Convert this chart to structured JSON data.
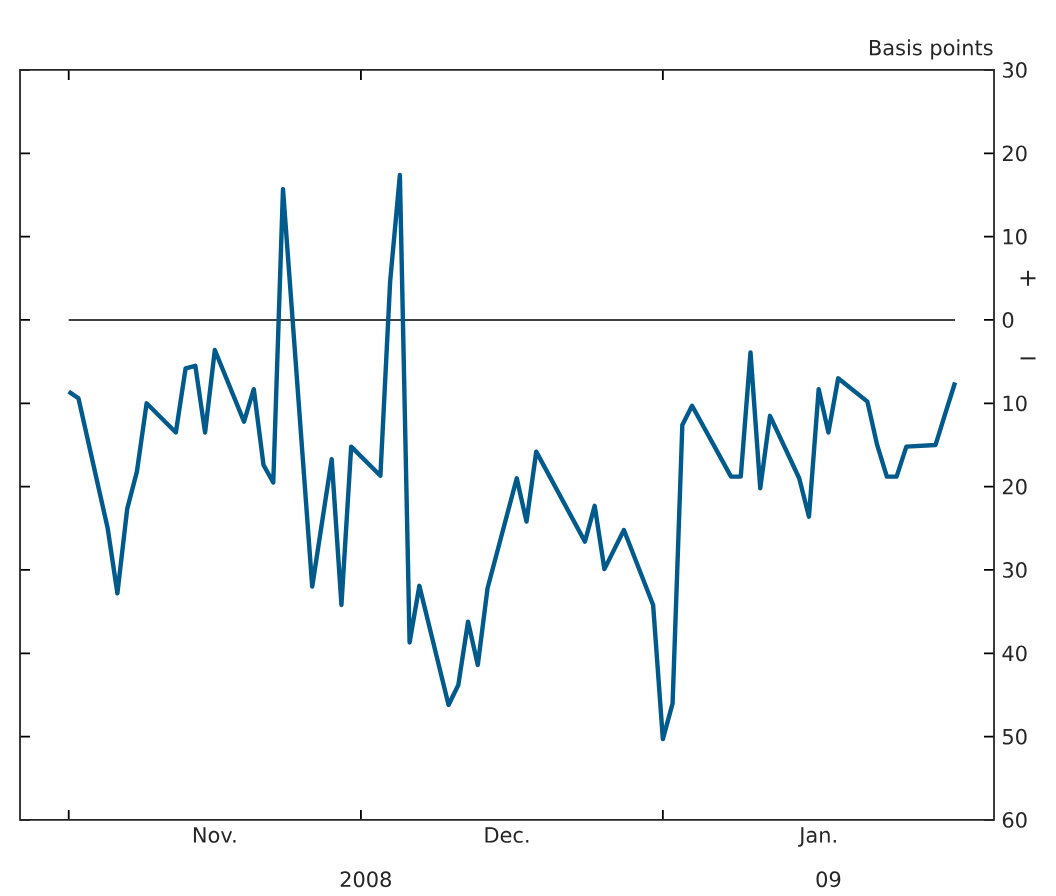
{
  "chart_data": {
    "type": "line",
    "ylabel": "Basis points",
    "x": [
      "2008-11-01",
      "2008-11-02",
      "2008-11-05",
      "2008-11-06",
      "2008-11-07",
      "2008-11-08",
      "2008-11-09",
      "2008-11-12",
      "2008-11-13",
      "2008-11-14",
      "2008-11-15",
      "2008-11-16",
      "2008-11-19",
      "2008-11-20",
      "2008-11-21",
      "2008-11-22",
      "2008-11-23",
      "2008-11-26",
      "2008-11-28",
      "2008-11-29",
      "2008-11-30",
      "2008-12-03",
      "2008-12-04",
      "2008-12-05",
      "2008-12-06",
      "2008-12-07",
      "2008-12-10",
      "2008-12-11",
      "2008-12-12",
      "2008-12-13",
      "2008-12-14",
      "2008-12-17",
      "2008-12-18",
      "2008-12-19",
      "2008-12-24",
      "2008-12-25",
      "2008-12-26",
      "2008-12-28",
      "2008-12-31",
      "2009-01-01",
      "2009-01-02",
      "2009-01-03",
      "2009-01-04",
      "2009-01-08",
      "2009-01-09",
      "2009-01-10",
      "2009-01-11",
      "2009-01-12",
      "2009-01-15",
      "2009-01-16",
      "2009-01-17",
      "2009-01-18",
      "2009-01-19",
      "2009-01-22",
      "2009-01-23",
      "2009-01-24",
      "2009-01-25",
      "2009-01-26",
      "2009-01-29",
      "2009-01-30",
      "2009-01-31"
    ],
    "series": [
      {
        "color": "#005a8c",
        "values": [
          -8.6,
          -9.4,
          -25.0,
          -32.8,
          -22.7,
          -18.2,
          -10.0,
          -13.5,
          -5.8,
          -5.5,
          -13.5,
          -3.6,
          -12.2,
          -8.3,
          -17.4,
          -19.5,
          15.7,
          -32.0,
          -16.7,
          -34.2,
          -15.2,
          -18.7,
          4.6,
          17.4,
          -38.7,
          -31.9,
          -46.2,
          -43.8,
          -36.2,
          -41.4,
          -32.2,
          -19.0,
          -24.2,
          -15.8,
          -26.6,
          -22.3,
          -29.9,
          -25.2,
          -34.2,
          -50.3,
          -46.0,
          -12.6,
          -10.3,
          -18.8,
          -18.8,
          -3.9,
          -20.2,
          -11.5,
          -19.0,
          -23.6,
          -8.3,
          -13.5,
          -7.0,
          -9.8,
          -15.0,
          -18.8,
          -18.8,
          -15.2,
          -15.0,
          -11.2,
          -7.5
        ]
      }
    ],
    "xlim": [
      "2008-10-27",
      "2009-02-04"
    ],
    "xticks": [
      {
        "value": "2008-11-01",
        "label": null
      },
      {
        "value": "2008-12-01",
        "label": null
      },
      {
        "value": "2009-01-01",
        "label": null
      },
      {
        "value": "2008-11-16",
        "label": "Nov."
      },
      {
        "value": "2008-12-16",
        "label": "Dec."
      },
      {
        "value": "2009-01-17",
        "label": "Jan."
      }
    ],
    "ylim": [
      -60,
      30
    ],
    "yticks": [
      30,
      20,
      10,
      0,
      {
        "value": -10,
        "label": "10"
      },
      {
        "value": -20,
        "label": "20"
      },
      {
        "value": -30,
        "label": "30"
      },
      {
        "value": -40,
        "label": "40"
      },
      {
        "value": -50,
        "label": "50"
      },
      {
        "value": -60,
        "label": "60"
      }
    ],
    "ref_lines": [
      {
        "axis": "y",
        "value": 0,
        "color": "#404040"
      }
    ],
    "annotations": [
      "+",
      "−",
      "2008",
      "09"
    ],
    "grid": false,
    "marker": "none",
    "line_style": "solid"
  }
}
